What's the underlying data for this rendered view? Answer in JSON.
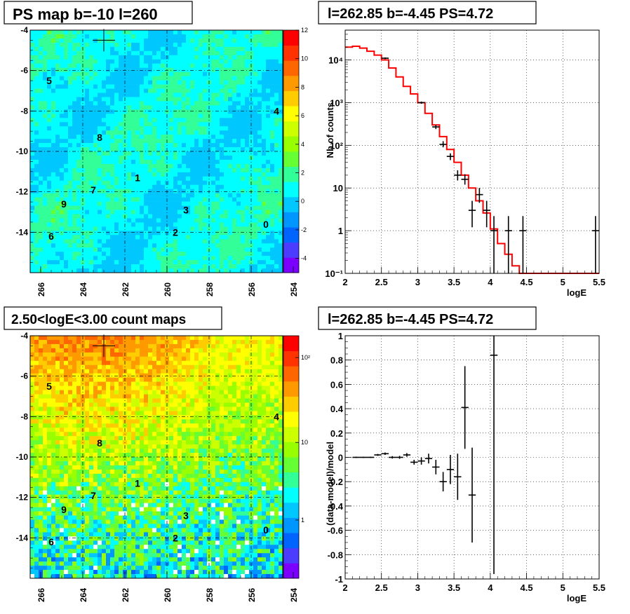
{
  "maps": [
    {
      "title": "PS map b=-10 l=260",
      "x_ticks": [
        "266",
        "264",
        "262",
        "260",
        "258",
        "256",
        "254"
      ],
      "y_ticks": [
        "-4",
        "-6",
        "-8",
        "-10",
        "-12",
        "-14"
      ],
      "scale_labels": [
        "12",
        "10",
        "8",
        "6",
        "4",
        "2",
        "0",
        "-2",
        "-4"
      ],
      "sources": [
        {
          "label": "5",
          "l": 265.6,
          "b": -6.5
        },
        {
          "label": "4",
          "l": 254.8,
          "b": -8.0
        },
        {
          "label": "8",
          "l": 263.2,
          "b": -9.3
        },
        {
          "label": "1",
          "l": 261.4,
          "b": -11.3
        },
        {
          "label": "7",
          "l": 263.5,
          "b": -11.9
        },
        {
          "label": "9",
          "l": 264.9,
          "b": -12.6
        },
        {
          "label": "3",
          "l": 259.1,
          "b": -12.9
        },
        {
          "label": "0",
          "l": 255.3,
          "b": -13.6
        },
        {
          "label": "6",
          "l": 265.5,
          "b": -14.2
        },
        {
          "label": "2",
          "l": 259.6,
          "b": -14.0
        }
      ],
      "marker": {
        "l": 263.0,
        "b": -4.5
      },
      "colors": [
        "#7b00ff",
        "#4b3cff",
        "#0064ff",
        "#0096ff",
        "#00c8ff",
        "#00ffff",
        "#33ff99",
        "#66ff33",
        "#99ff00",
        "#ccff00",
        "#ffff00",
        "#ffcc00",
        "#ff9900",
        "#ff6600",
        "#ff3300",
        "#ff0000"
      ]
    },
    {
      "title": "2.50<logE<3.00 count maps",
      "x_ticks": [
        "266",
        "264",
        "262",
        "260",
        "258",
        "256",
        "254"
      ],
      "y_ticks": [
        "-4",
        "-6",
        "-8",
        "-10",
        "-12",
        "-14"
      ],
      "scale_labels": [
        "10²",
        "10",
        "1"
      ],
      "sources": [
        {
          "label": "5",
          "l": 265.6,
          "b": -6.5
        },
        {
          "label": "4",
          "l": 254.8,
          "b": -8.0
        },
        {
          "label": "8",
          "l": 263.2,
          "b": -9.3
        },
        {
          "label": "1",
          "l": 261.4,
          "b": -11.3
        },
        {
          "label": "7",
          "l": 263.5,
          "b": -11.9
        },
        {
          "label": "9",
          "l": 264.9,
          "b": -12.6
        },
        {
          "label": "3",
          "l": 259.1,
          "b": -12.9
        },
        {
          "label": "0",
          "l": 255.3,
          "b": -13.6
        },
        {
          "label": "6",
          "l": 265.5,
          "b": -14.2
        },
        {
          "label": "2",
          "l": 259.6,
          "b": -14.0
        }
      ],
      "marker": {
        "l": 263.0,
        "b": -4.5
      }
    }
  ],
  "chart_data": [
    {
      "type": "line",
      "title": "l=262.85 b=-4.45 PS=4.72",
      "xlabel": "logE",
      "ylabel": "Nb of counts",
      "xlim": [
        2,
        5.5
      ],
      "ylim": [
        0.1,
        50000
      ],
      "y_scale": "log",
      "grid": true,
      "x_ticks": [
        "2",
        "2.5",
        "3",
        "3.5",
        "4",
        "4.5",
        "5",
        "5.5"
      ],
      "y_ticks": [
        {
          "label": "10⁻¹",
          "v": 0.1
        },
        {
          "label": "1",
          "v": 1
        },
        {
          "label": "10",
          "v": 10
        },
        {
          "label": "10²",
          "v": 100
        },
        {
          "label": "10³",
          "v": 1000
        },
        {
          "label": "10⁴",
          "v": 10000
        }
      ],
      "model_bins": {
        "edges": [
          2.0,
          2.1,
          2.2,
          2.3,
          2.4,
          2.5,
          2.6,
          2.7,
          2.8,
          2.9,
          3.0,
          3.1,
          3.2,
          3.3,
          3.4,
          3.5,
          3.6,
          3.7,
          3.8,
          3.9,
          4.0,
          4.1,
          4.2,
          4.3,
          4.4,
          4.5,
          4.6,
          4.7,
          4.8,
          4.9,
          5.0,
          5.1,
          5.2,
          5.3,
          5.4,
          5.5
        ],
        "values": [
          20000,
          21000,
          19000,
          16000,
          13000,
          10000,
          6500,
          4000,
          2400,
          1600,
          1000,
          560,
          300,
          160,
          80,
          40,
          20,
          10,
          5,
          2.6,
          1.1,
          0.5,
          0.28,
          0.15,
          0.1,
          0.1,
          0.1,
          0.1,
          0.1,
          0.1,
          0.1,
          0.1,
          0.1,
          0.1,
          0.1
        ]
      },
      "data_points": [
        {
          "x": 2.55,
          "y": 11000,
          "lo": 10500,
          "hi": 11500
        },
        {
          "x": 3.05,
          "y": 1000,
          "lo": 940,
          "hi": 1060
        },
        {
          "x": 3.25,
          "y": 270,
          "lo": 240,
          "hi": 300
        },
        {
          "x": 3.35,
          "y": 105,
          "lo": 90,
          "hi": 125
        },
        {
          "x": 3.45,
          "y": 55,
          "lo": 45,
          "hi": 65
        },
        {
          "x": 3.55,
          "y": 20,
          "lo": 15,
          "hi": 26
        },
        {
          "x": 3.65,
          "y": 16,
          "lo": 12,
          "hi": 21
        },
        {
          "x": 3.75,
          "y": 3,
          "lo": 1.2,
          "hi": 5
        },
        {
          "x": 3.85,
          "y": 7,
          "lo": 4.5,
          "hi": 10
        },
        {
          "x": 3.95,
          "y": 3,
          "lo": 1.2,
          "hi": 5
        },
        {
          "x": 4.05,
          "y": 1,
          "lo": 0.1,
          "hi": 2.2
        },
        {
          "x": 4.25,
          "y": 1,
          "lo": 0.1,
          "hi": 2.2
        },
        {
          "x": 4.45,
          "y": 1,
          "lo": 0.1,
          "hi": 2.2
        },
        {
          "x": 5.45,
          "y": 1,
          "lo": 0.1,
          "hi": 2.2
        }
      ],
      "colors": {
        "model": "#ff0000",
        "data": "#000000"
      }
    },
    {
      "type": "scatter",
      "title": "l=262.85 b=-4.45 PS=4.72",
      "xlabel": "logE",
      "ylabel": "(data-model)/model",
      "xlim": [
        2,
        5.5
      ],
      "ylim": [
        -1,
        1
      ],
      "grid": true,
      "x_ticks": [
        "2",
        "2.5",
        "3",
        "3.5",
        "4",
        "4.5",
        "5",
        "5.5"
      ],
      "y_ticks": [
        "-1",
        "-0.8",
        "-0.6",
        "-0.4",
        "-0.2",
        "0",
        "0.2",
        "0.4",
        "0.6",
        "0.8",
        "1"
      ],
      "data_points": [
        {
          "x": 2.15,
          "y": 0.0,
          "e": 0.005
        },
        {
          "x": 2.25,
          "y": 0.0,
          "e": 0.005
        },
        {
          "x": 2.35,
          "y": 0.0,
          "e": 0.005
        },
        {
          "x": 2.45,
          "y": 0.02,
          "e": 0.008
        },
        {
          "x": 2.55,
          "y": 0.03,
          "e": 0.01
        },
        {
          "x": 2.65,
          "y": 0.0,
          "e": 0.01
        },
        {
          "x": 2.75,
          "y": 0.0,
          "e": 0.012
        },
        {
          "x": 2.85,
          "y": 0.02,
          "e": 0.015
        },
        {
          "x": 2.95,
          "y": -0.04,
          "e": 0.02
        },
        {
          "x": 3.05,
          "y": -0.03,
          "e": 0.03
        },
        {
          "x": 3.15,
          "y": -0.01,
          "e": 0.04
        },
        {
          "x": 3.25,
          "y": -0.08,
          "e": 0.06
        },
        {
          "x": 3.35,
          "y": -0.2,
          "e": 0.08
        },
        {
          "x": 3.45,
          "y": -0.1,
          "e": 0.12
        },
        {
          "x": 3.55,
          "y": -0.16,
          "e": 0.19
        },
        {
          "x": 3.65,
          "y": 0.41,
          "e": 0.34
        },
        {
          "x": 3.75,
          "y": -0.31,
          "e": 0.39
        },
        {
          "x": 4.05,
          "y": 0.84,
          "e": 1.8
        }
      ],
      "colors": {
        "data": "#000000"
      }
    }
  ]
}
